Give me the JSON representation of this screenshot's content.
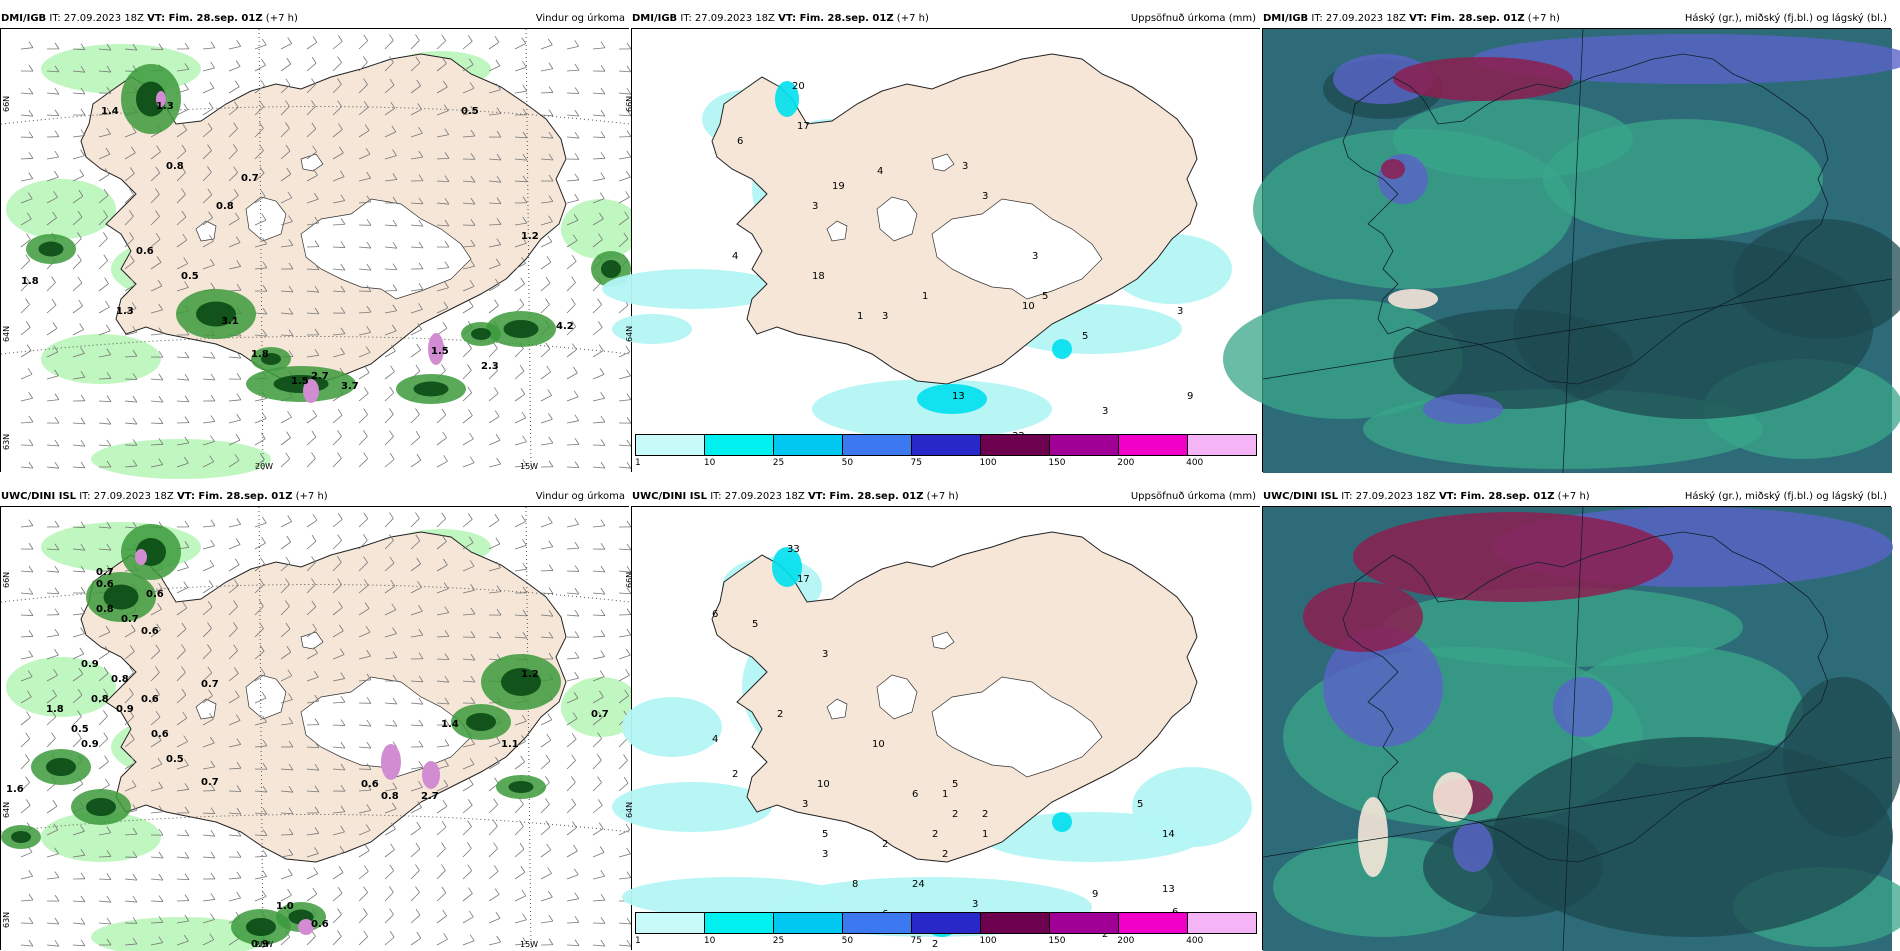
{
  "init_label": "IT: 27.09.2023 18Z",
  "vt_label": "VT: Fim. 28.sep. 01Z",
  "lead": "(+7 h)",
  "rows": [
    {
      "model": "DMI/IGB"
    },
    {
      "model": "UWC/DINI ISL"
    }
  ],
  "titles": {
    "wind": "Vindur og úrkoma",
    "precip": "Uppsöfnuð úrkoma (mm)",
    "cloud": "Háský (gr.), miðský (fj.bl.) og lágský (bl.)"
  },
  "axes": {
    "lon_20": "20W",
    "lon_15": "15W",
    "lat_66": "66N",
    "lat_64": "64N",
    "lat_63": "63N"
  },
  "colorbar": {
    "ticks": [
      "1",
      "10",
      "25",
      "50",
      "75",
      "100",
      "150",
      "200",
      "400"
    ],
    "colors": [
      "#c8fafa",
      "#00f0f0",
      "#00c8f0",
      "#3c78f0",
      "#2828c8",
      "#6e0050",
      "#a00096",
      "#f000c8",
      "#f5b4f5"
    ]
  },
  "colors": {
    "land": "#f5e6d8",
    "snow": "#ffffff",
    "precip_light": "#b9f5b9",
    "precip_mid": "#3c9a3c",
    "precip_dark": "#0a4a14",
    "precip_purple": "#d28cd2",
    "accum_light": "#b4f5f5",
    "cloud_base": "#2e6b78",
    "cloud_green": "#3aa58a",
    "cloud_dark": "#1e4a50",
    "cloud_blue": "#5a64c8",
    "cloud_red": "#8c1e50"
  },
  "wind_labels_top": [
    "1.4",
    "1.3",
    "0.5",
    "0.8",
    "0.7",
    "0.8",
    "0.6",
    "0.5",
    "1.8",
    "1.3",
    "3.1",
    "1.8",
    "2.7",
    "3.7",
    "1.5",
    "4.2",
    "2.3",
    "1.5",
    "1.2"
  ],
  "wind_labels_bot": [
    "0.7",
    "0.6",
    "0.6",
    "0.8",
    "0.7",
    "0.6",
    "0.9",
    "0.8",
    "0.8",
    "0.5",
    "0.9",
    "0.5",
    "0.6",
    "0.7",
    "0.6",
    "0.9",
    "0.7",
    "0.8",
    "1.2",
    "0.6",
    "2.7",
    "1.1",
    "0.6",
    "1.0",
    "0.9",
    "1.8",
    "1.6",
    "0.7",
    "1.4"
  ],
  "precip_labels_top": [
    "20",
    "17",
    "6",
    "4",
    "3",
    "3",
    "3",
    "4",
    "1",
    "1",
    "10",
    "5",
    "3",
    "3",
    "3",
    "13",
    "32",
    "9",
    "5",
    "18",
    "19",
    "3"
  ],
  "precip_labels_bot": [
    "33",
    "17",
    "6",
    "5",
    "3",
    "2",
    "4",
    "2",
    "3",
    "5",
    "2",
    "2",
    "2",
    "1",
    "1",
    "3",
    "8",
    "2",
    "6",
    "1",
    "10",
    "10",
    "6",
    "2",
    "2",
    "3",
    "24",
    "5",
    "14",
    "13",
    "6",
    "9",
    "3",
    "2",
    "2",
    "4",
    "5"
  ]
}
